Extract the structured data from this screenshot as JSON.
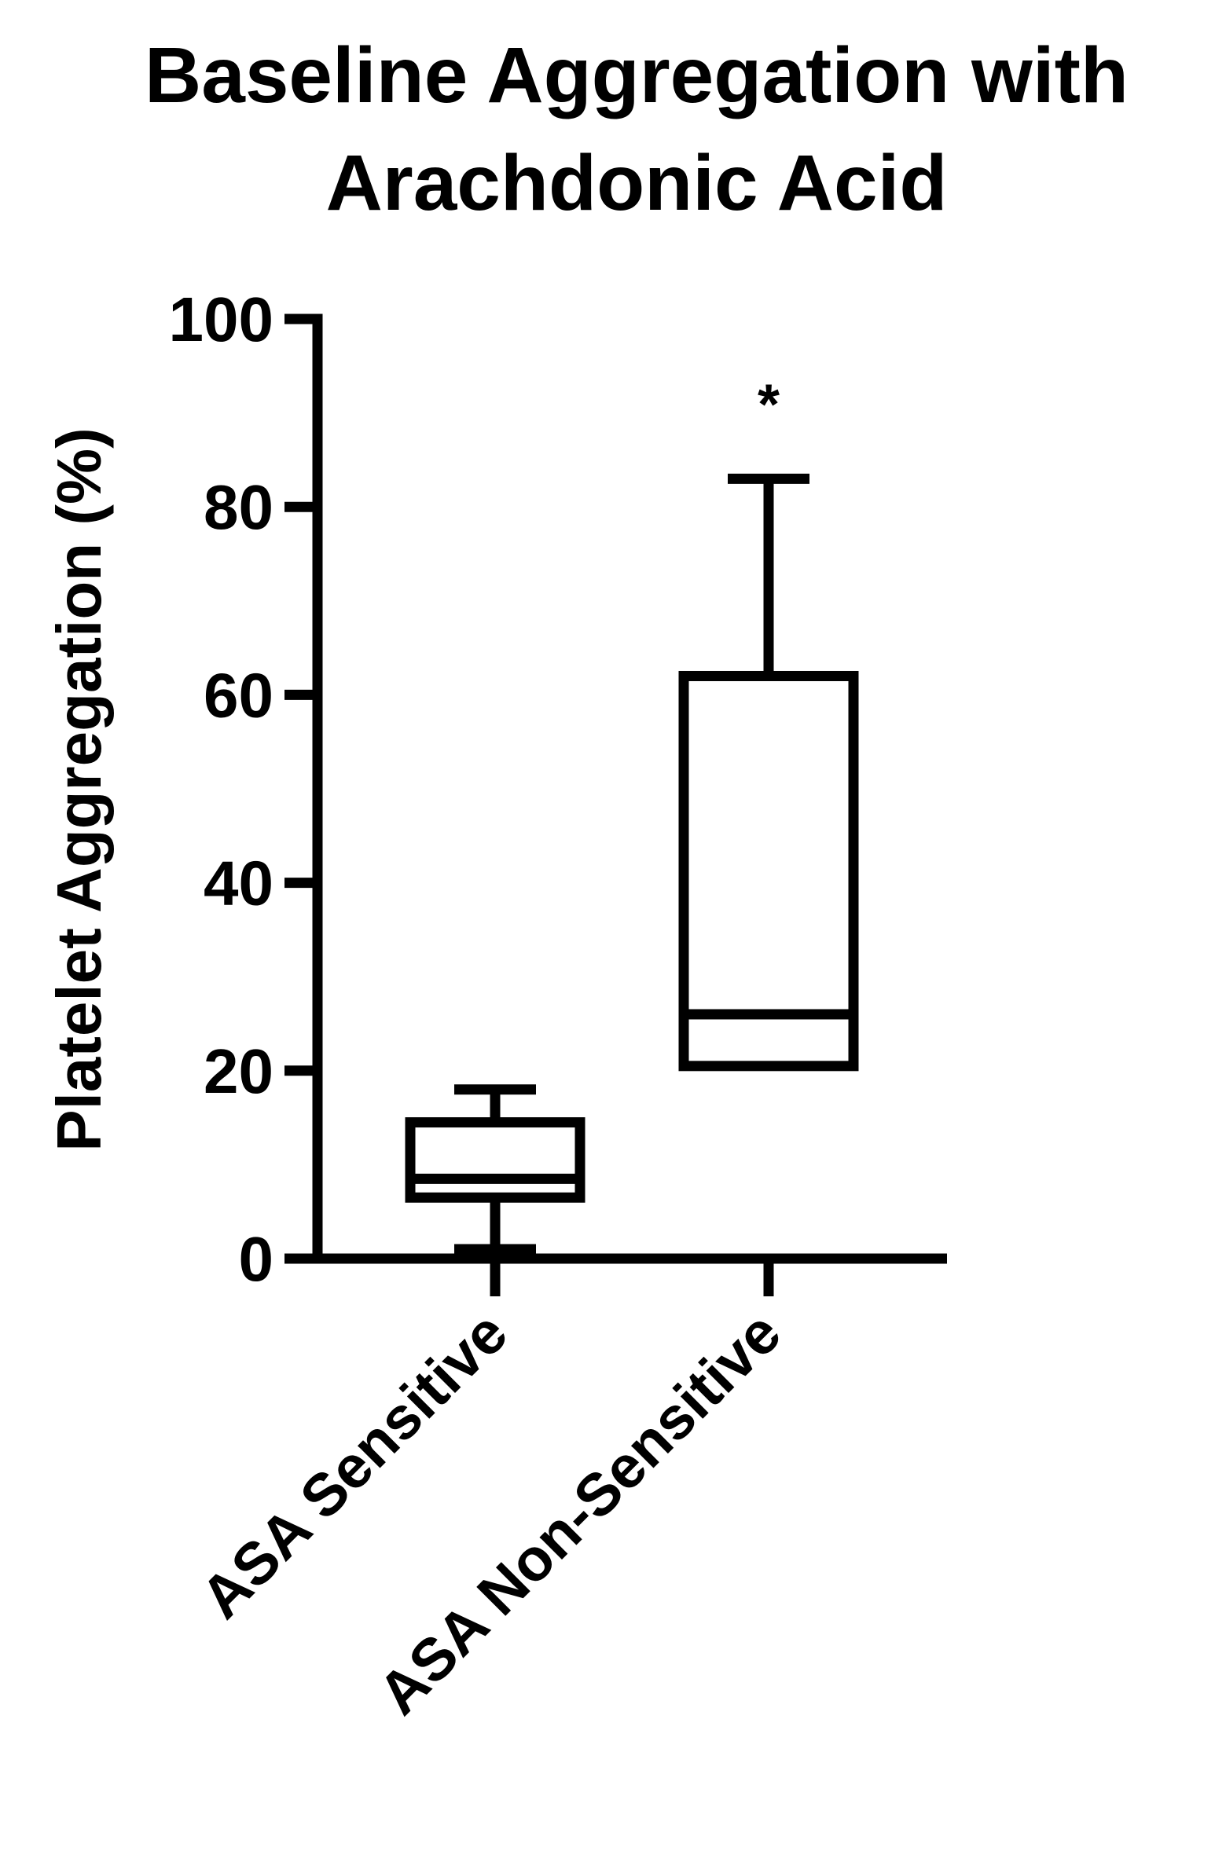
{
  "chart_data": {
    "type": "box",
    "title_lines": [
      "Baseline Aggregation with",
      "Arachdonic Acid"
    ],
    "ylabel": "Platelet Aggregation (%)",
    "xlabel": "",
    "ylim": [
      0,
      100
    ],
    "yticks": [
      0,
      20,
      40,
      60,
      80,
      100
    ],
    "grid": false,
    "categories": [
      "ASA Sensitive",
      "ASA Non-Sensitive"
    ],
    "boxes": [
      {
        "min": 1,
        "q1": 6.5,
        "median": 8.5,
        "q3": 14.5,
        "max": 18,
        "annotation": ""
      },
      {
        "min": 20.5,
        "q1": 20.5,
        "median": 26,
        "q3": 62,
        "max": 83,
        "annotation": "*"
      }
    ]
  }
}
